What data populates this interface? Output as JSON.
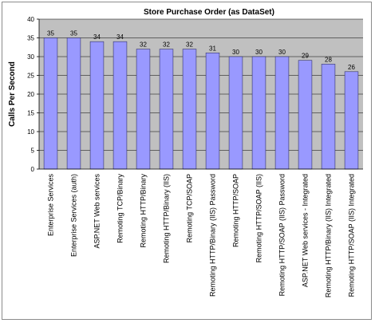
{
  "chart_data": {
    "type": "bar",
    "title": "Store Purchase Order (as DataSet)",
    "xlabel": "",
    "ylabel": "Calls Per Second",
    "ylim": [
      0,
      40
    ],
    "yticks": [
      0,
      5,
      10,
      15,
      20,
      25,
      30,
      35,
      40
    ],
    "grid": true,
    "legend": "none",
    "colors": {
      "plot_background": "#c0c0c0",
      "bar_fill": "#9999ff",
      "bar_stroke": "#333366",
      "gridline": "#000000"
    },
    "categories": [
      "Enterprise Services",
      "Enterprise Services (auth)",
      "ASP.NET Web services",
      "Remoting TCP/Binary",
      "Remoting HTTP/Binary",
      "Remoting HTTP/Binary (IIS)",
      "Remoting TCP/SOAP",
      "Remoting HTTP/Binary (IIS) Password",
      "Remoting HTTP/SOAP",
      "Remoting HTTP/SOAP (IIS)",
      "Remoting HTTP/SOAP (IIS) Password",
      "ASP.NET Web services - Integrated",
      "Remoting HTTP/Binary (IIS) Integrated",
      "Remoting HTTP/SOAP (IIS) Integrated"
    ],
    "values": [
      35,
      35,
      34,
      34,
      32,
      32,
      32,
      31,
      30,
      30,
      30,
      29,
      28,
      26
    ]
  }
}
